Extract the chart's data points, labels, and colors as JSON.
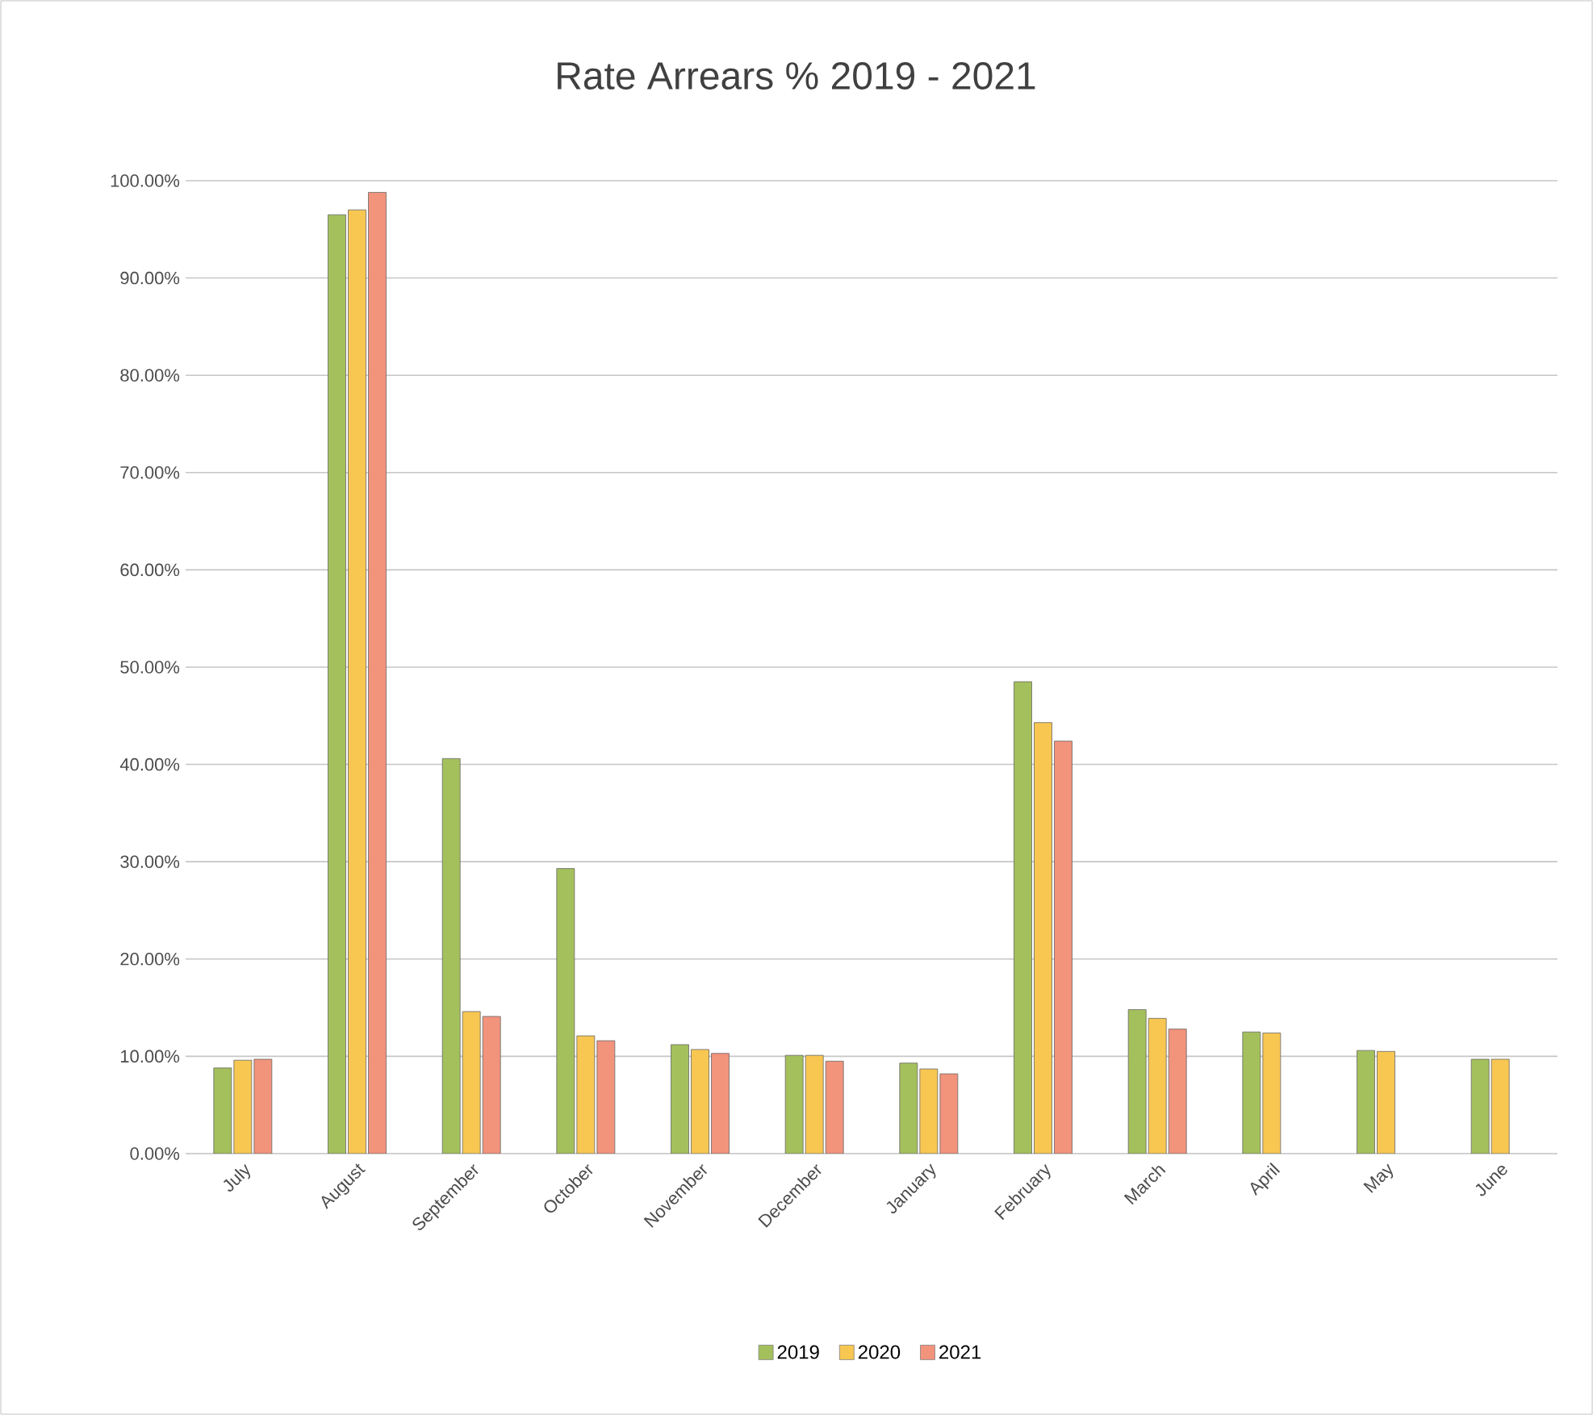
{
  "chart_data": {
    "type": "bar",
    "title": "Rate Arrears % 2019 - 2021",
    "categories": [
      "July",
      "August",
      "September",
      "October",
      "November",
      "December",
      "January",
      "February",
      "March",
      "April",
      "May",
      "June"
    ],
    "series": [
      {
        "name": "2019",
        "color": "#a4c05c",
        "values": [
          8.8,
          96.5,
          40.6,
          29.3,
          11.2,
          10.1,
          9.3,
          48.5,
          14.8,
          12.5,
          10.6,
          9.7
        ]
      },
      {
        "name": "2020",
        "color": "#f7c752",
        "values": [
          9.6,
          97,
          14.6,
          12.1,
          10.7,
          10.1,
          8.7,
          44.3,
          13.9,
          12.4,
          10.5,
          9.7
        ]
      },
      {
        "name": "2021",
        "color": "#f2937c",
        "values": [
          9.7,
          98.8,
          14.1,
          11.6,
          10.3,
          9.5,
          8.2,
          42.4,
          12.8,
          null,
          null,
          null
        ]
      }
    ],
    "ylim": [
      0,
      100
    ],
    "yticks": [
      {
        "value": 0,
        "label": "0.00%"
      },
      {
        "value": 10,
        "label": "10.00%"
      },
      {
        "value": 20,
        "label": "20.00%"
      },
      {
        "value": 30,
        "label": "30.00%"
      },
      {
        "value": 40,
        "label": "40.00%"
      },
      {
        "value": 50,
        "label": "50.00%"
      },
      {
        "value": 60,
        "label": "60.00%"
      },
      {
        "value": 70,
        "label": "70.00%"
      },
      {
        "value": 80,
        "label": "80.00%"
      },
      {
        "value": 90,
        "label": "90.00%"
      },
      {
        "value": 100,
        "label": "100.00%"
      }
    ],
    "grid": "y",
    "legend": "bottom"
  }
}
